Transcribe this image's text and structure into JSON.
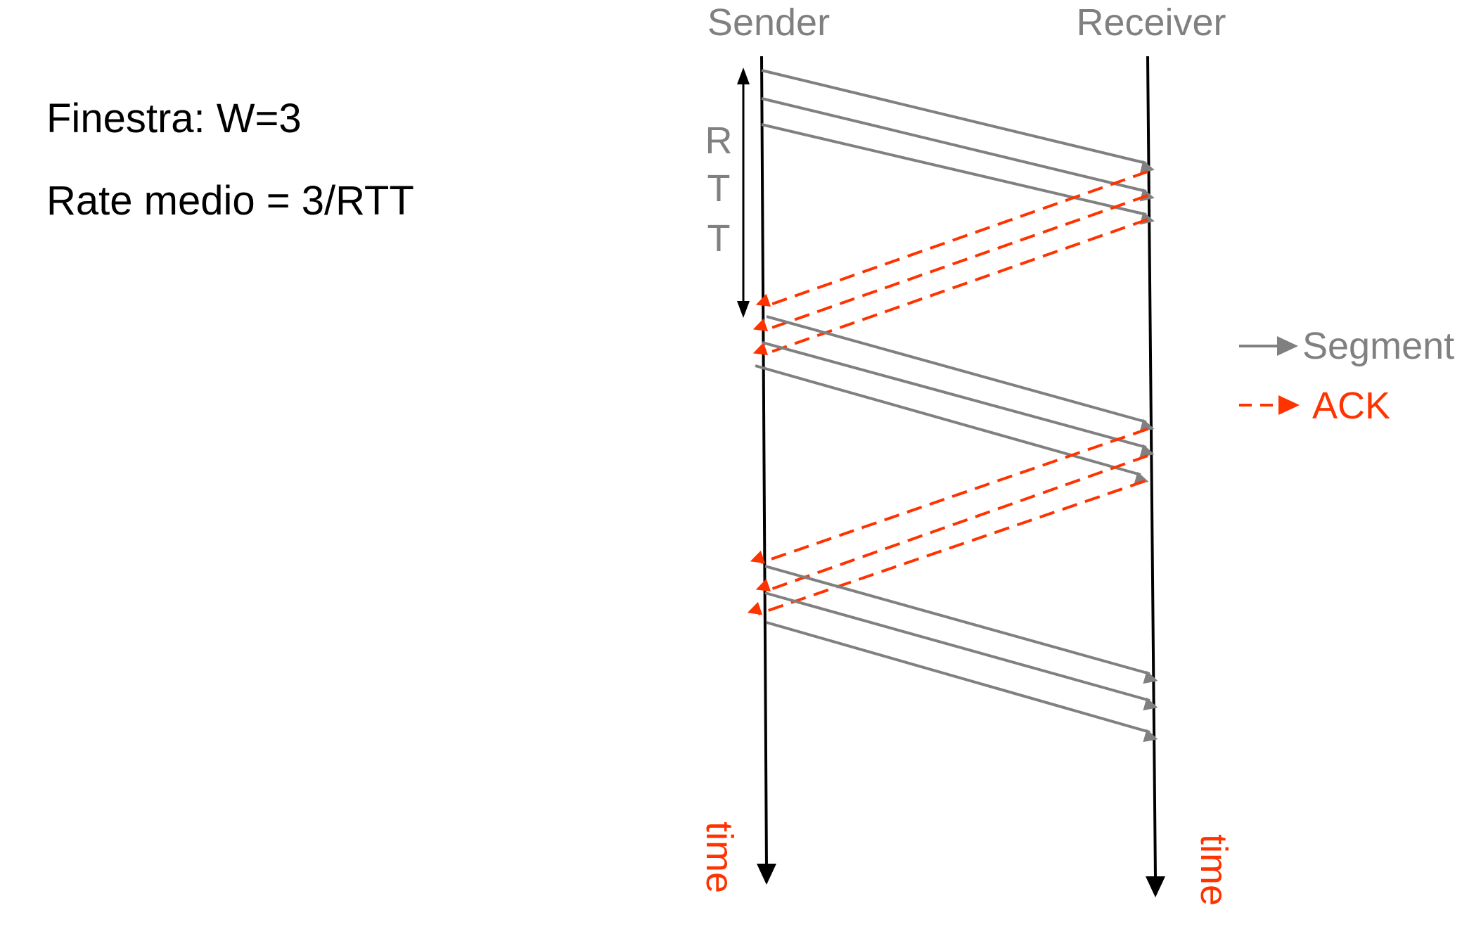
{
  "info": {
    "window": "Finestra: W=3",
    "rate": "Rate medio = 3/RTT"
  },
  "hosts": {
    "sender": "Sender",
    "receiver": "Receiver"
  },
  "rtt_label": [
    "R",
    "T",
    "T"
  ],
  "time_label": "time",
  "legend": {
    "segment": "Segment",
    "ack": "ACK"
  },
  "colors": {
    "segment": "#808080",
    "ack": "#ff3300",
    "axis": "#000000"
  },
  "window_size": 3,
  "rounds_shown": 3
}
